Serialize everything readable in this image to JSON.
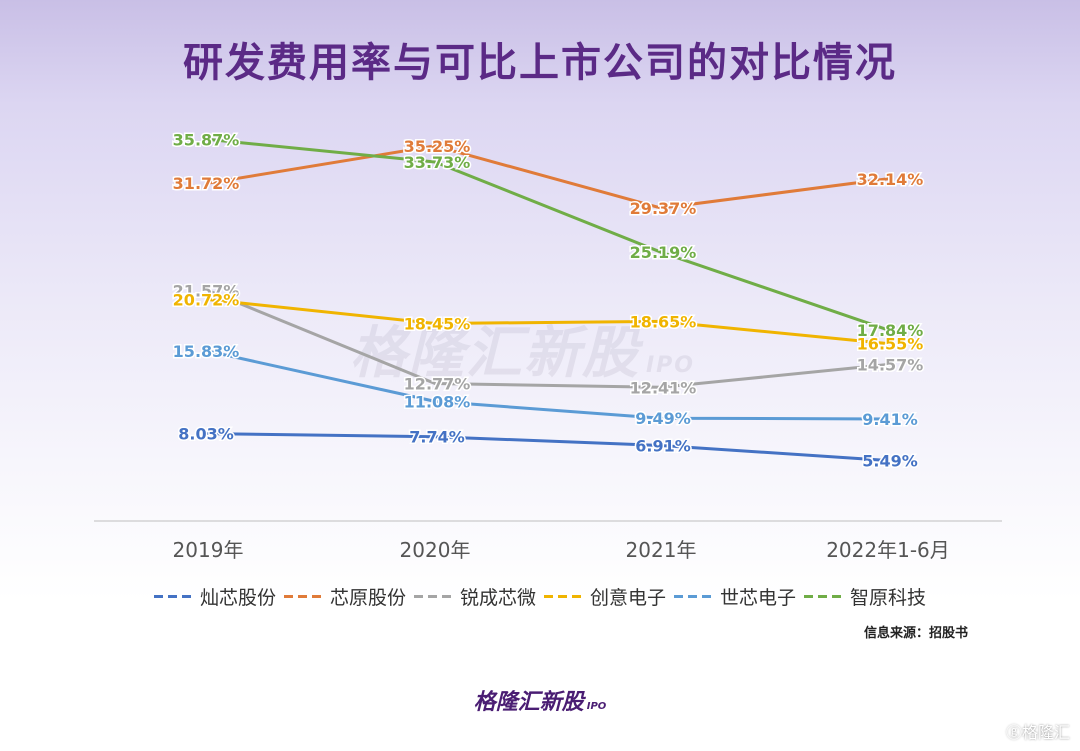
{
  "title": "研发费用率与可比上市公司的对比情况",
  "source_text": "信息来源：招股书",
  "brand": {
    "main": "格隆汇新股",
    "sub": "IPO"
  },
  "corner_mark": "ⓖ格隆汇",
  "colors": {
    "title": "#5b2a86",
    "brand": "#4a1d73"
  },
  "chart_data": {
    "type": "line",
    "categories": [
      "2019年",
      "2020年",
      "2021年",
      "2022年1-6月"
    ],
    "ylim": [
      0,
      40
    ],
    "grid": false,
    "legend_position": "bottom",
    "series": [
      {
        "name": "灿芯股份",
        "color": "#4472c4",
        "values": [
          8.03,
          7.74,
          6.91,
          5.49
        ],
        "labels": [
          "8.03%",
          "7.74%",
          "6.91%",
          "5.49%"
        ]
      },
      {
        "name": "芯原股份",
        "color": "#e07b39",
        "values": [
          31.72,
          35.25,
          29.37,
          32.14
        ],
        "labels": [
          "31.72%",
          "35.25%",
          "29.37%",
          "32.14%"
        ]
      },
      {
        "name": "锐成芯微",
        "color": "#a5a5a5",
        "values": [
          21.57,
          12.77,
          12.41,
          14.57
        ],
        "labels": [
          "21.57%",
          "12.77%",
          "12.41%",
          "14.57%"
        ]
      },
      {
        "name": "创意电子",
        "color": "#f0b400",
        "values": [
          20.72,
          18.45,
          18.65,
          16.55
        ],
        "labels": [
          "20.72%",
          "18.45%",
          "18.65%",
          "16.55%"
        ]
      },
      {
        "name": "世芯电子",
        "color": "#5b9bd5",
        "values": [
          15.83,
          11.08,
          9.49,
          9.41
        ],
        "labels": [
          "15.83%",
          "11.08%",
          "9.49%",
          "9.41%"
        ]
      },
      {
        "name": "智原科技",
        "color": "#70ad47",
        "values": [
          35.87,
          33.73,
          25.19,
          17.84
        ],
        "labels": [
          "35.87%",
          "33.73%",
          "25.19%",
          "17.84%"
        ]
      }
    ]
  }
}
